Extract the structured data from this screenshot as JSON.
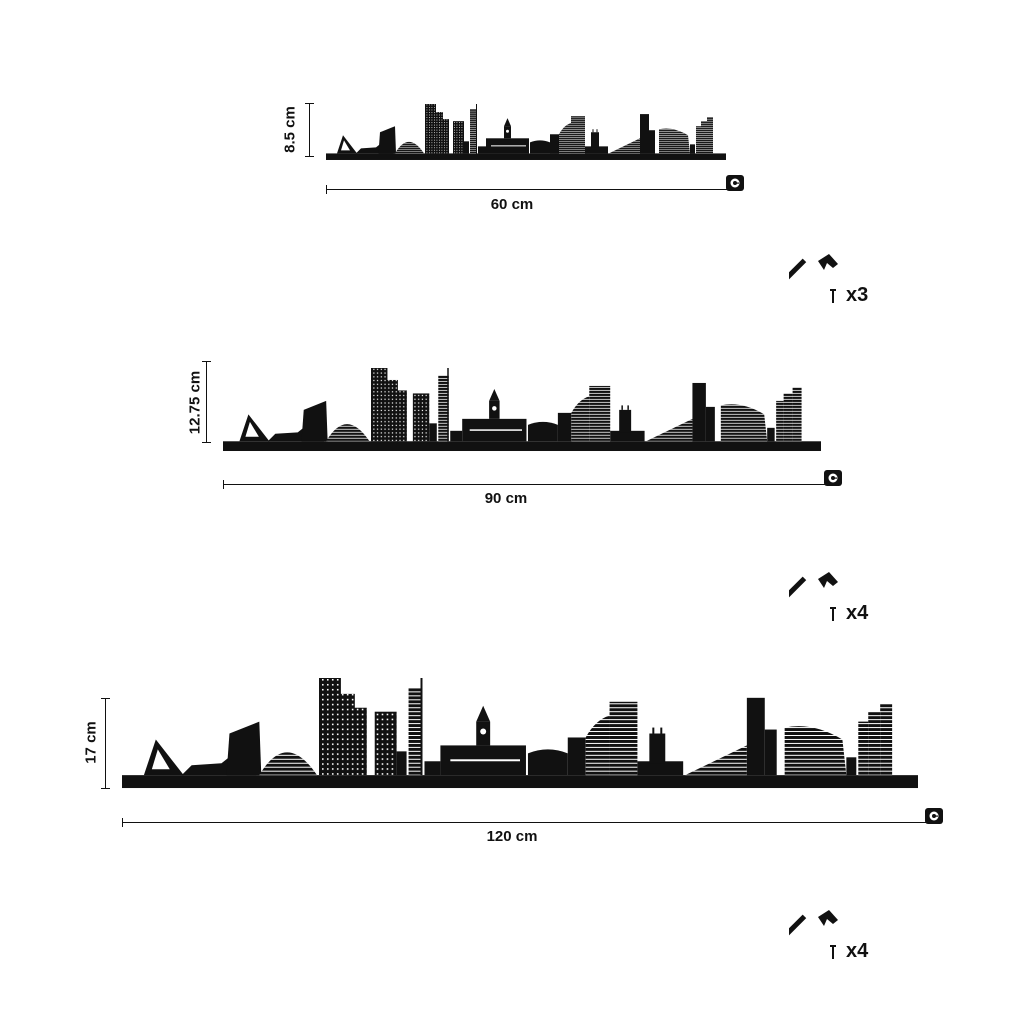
{
  "sizes": [
    {
      "width_label": "60 cm",
      "height_label": "8.5 cm"
    },
    {
      "width_label": "90 cm",
      "height_label": "12.75 cm"
    },
    {
      "width_label": "120 cm",
      "height_label": "17 cm"
    }
  ],
  "mounting": [
    {
      "count_label": "x3",
      "icon": "hammer-icon"
    },
    {
      "count_label": "x4",
      "icon": "hammer-icon"
    },
    {
      "count_label": "x4",
      "icon": "hammer-icon"
    }
  ],
  "colors": {
    "ink": "#111111",
    "background": "#ffffff"
  }
}
